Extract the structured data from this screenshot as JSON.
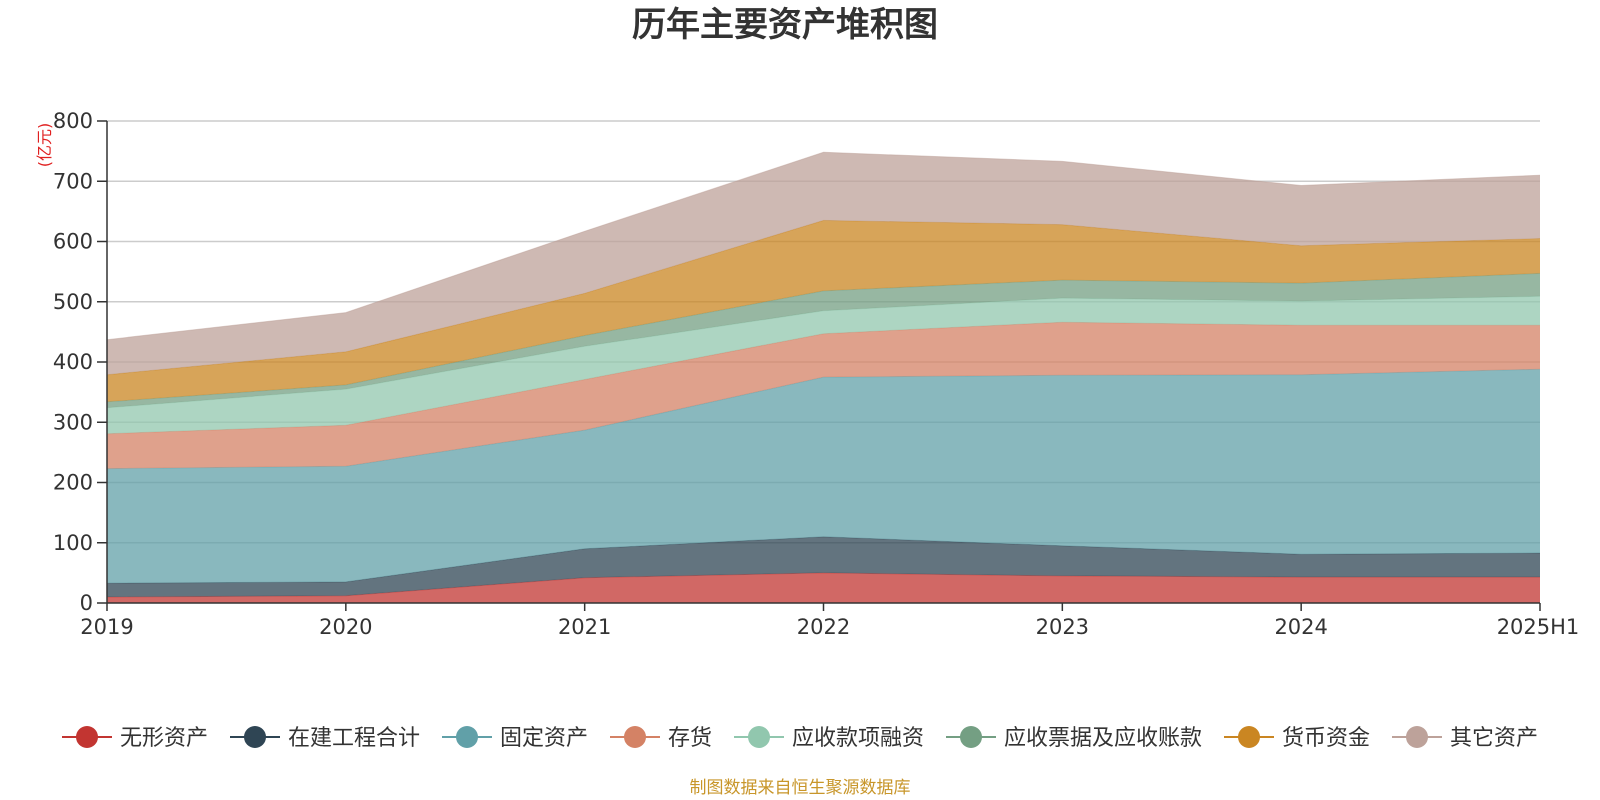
{
  "chart_data": {
    "type": "area",
    "stacked": true,
    "title": "历年主要资产堆积图",
    "unit_label": "(亿元)",
    "ylim": [
      0,
      800
    ],
    "y_ticks": [
      0,
      100,
      200,
      300,
      400,
      500,
      600,
      700,
      800
    ],
    "categories": [
      "2019",
      "2020",
      "2021",
      "2022",
      "2023",
      "2024",
      "2025H1"
    ],
    "grid": true,
    "legend_position": "bottom",
    "series": [
      {
        "name": "无形资产",
        "color": "#c23531",
        "values": [
          10,
          12,
          42,
          50,
          45,
          43,
          43
        ]
      },
      {
        "name": "在建工程合计",
        "color": "#2f4554",
        "values": [
          23,
          23,
          48,
          60,
          50,
          38,
          40
        ]
      },
      {
        "name": "固定资产",
        "color": "#61a0a8",
        "values": [
          190,
          192,
          197,
          265,
          283,
          298,
          305
        ]
      },
      {
        "name": "存货",
        "color": "#d48265",
        "values": [
          58,
          68,
          84,
          72,
          88,
          82,
          73
        ]
      },
      {
        "name": "应收款项融资",
        "color": "#91c7ae",
        "values": [
          43,
          60,
          55,
          38,
          40,
          40,
          48
        ]
      },
      {
        "name": "应收票据及应收账款",
        "color": "#749f83",
        "values": [
          10,
          7,
          18,
          33,
          30,
          30,
          38
        ]
      },
      {
        "name": "货币资金",
        "color": "#ca8622",
        "values": [
          45,
          55,
          70,
          117,
          92,
          62,
          58
        ]
      },
      {
        "name": "其它资产",
        "color": "#bda29a",
        "values": [
          58,
          65,
          103,
          113,
          105,
          100,
          105
        ]
      }
    ]
  },
  "footer": "制图数据来自恒生聚源数据库"
}
